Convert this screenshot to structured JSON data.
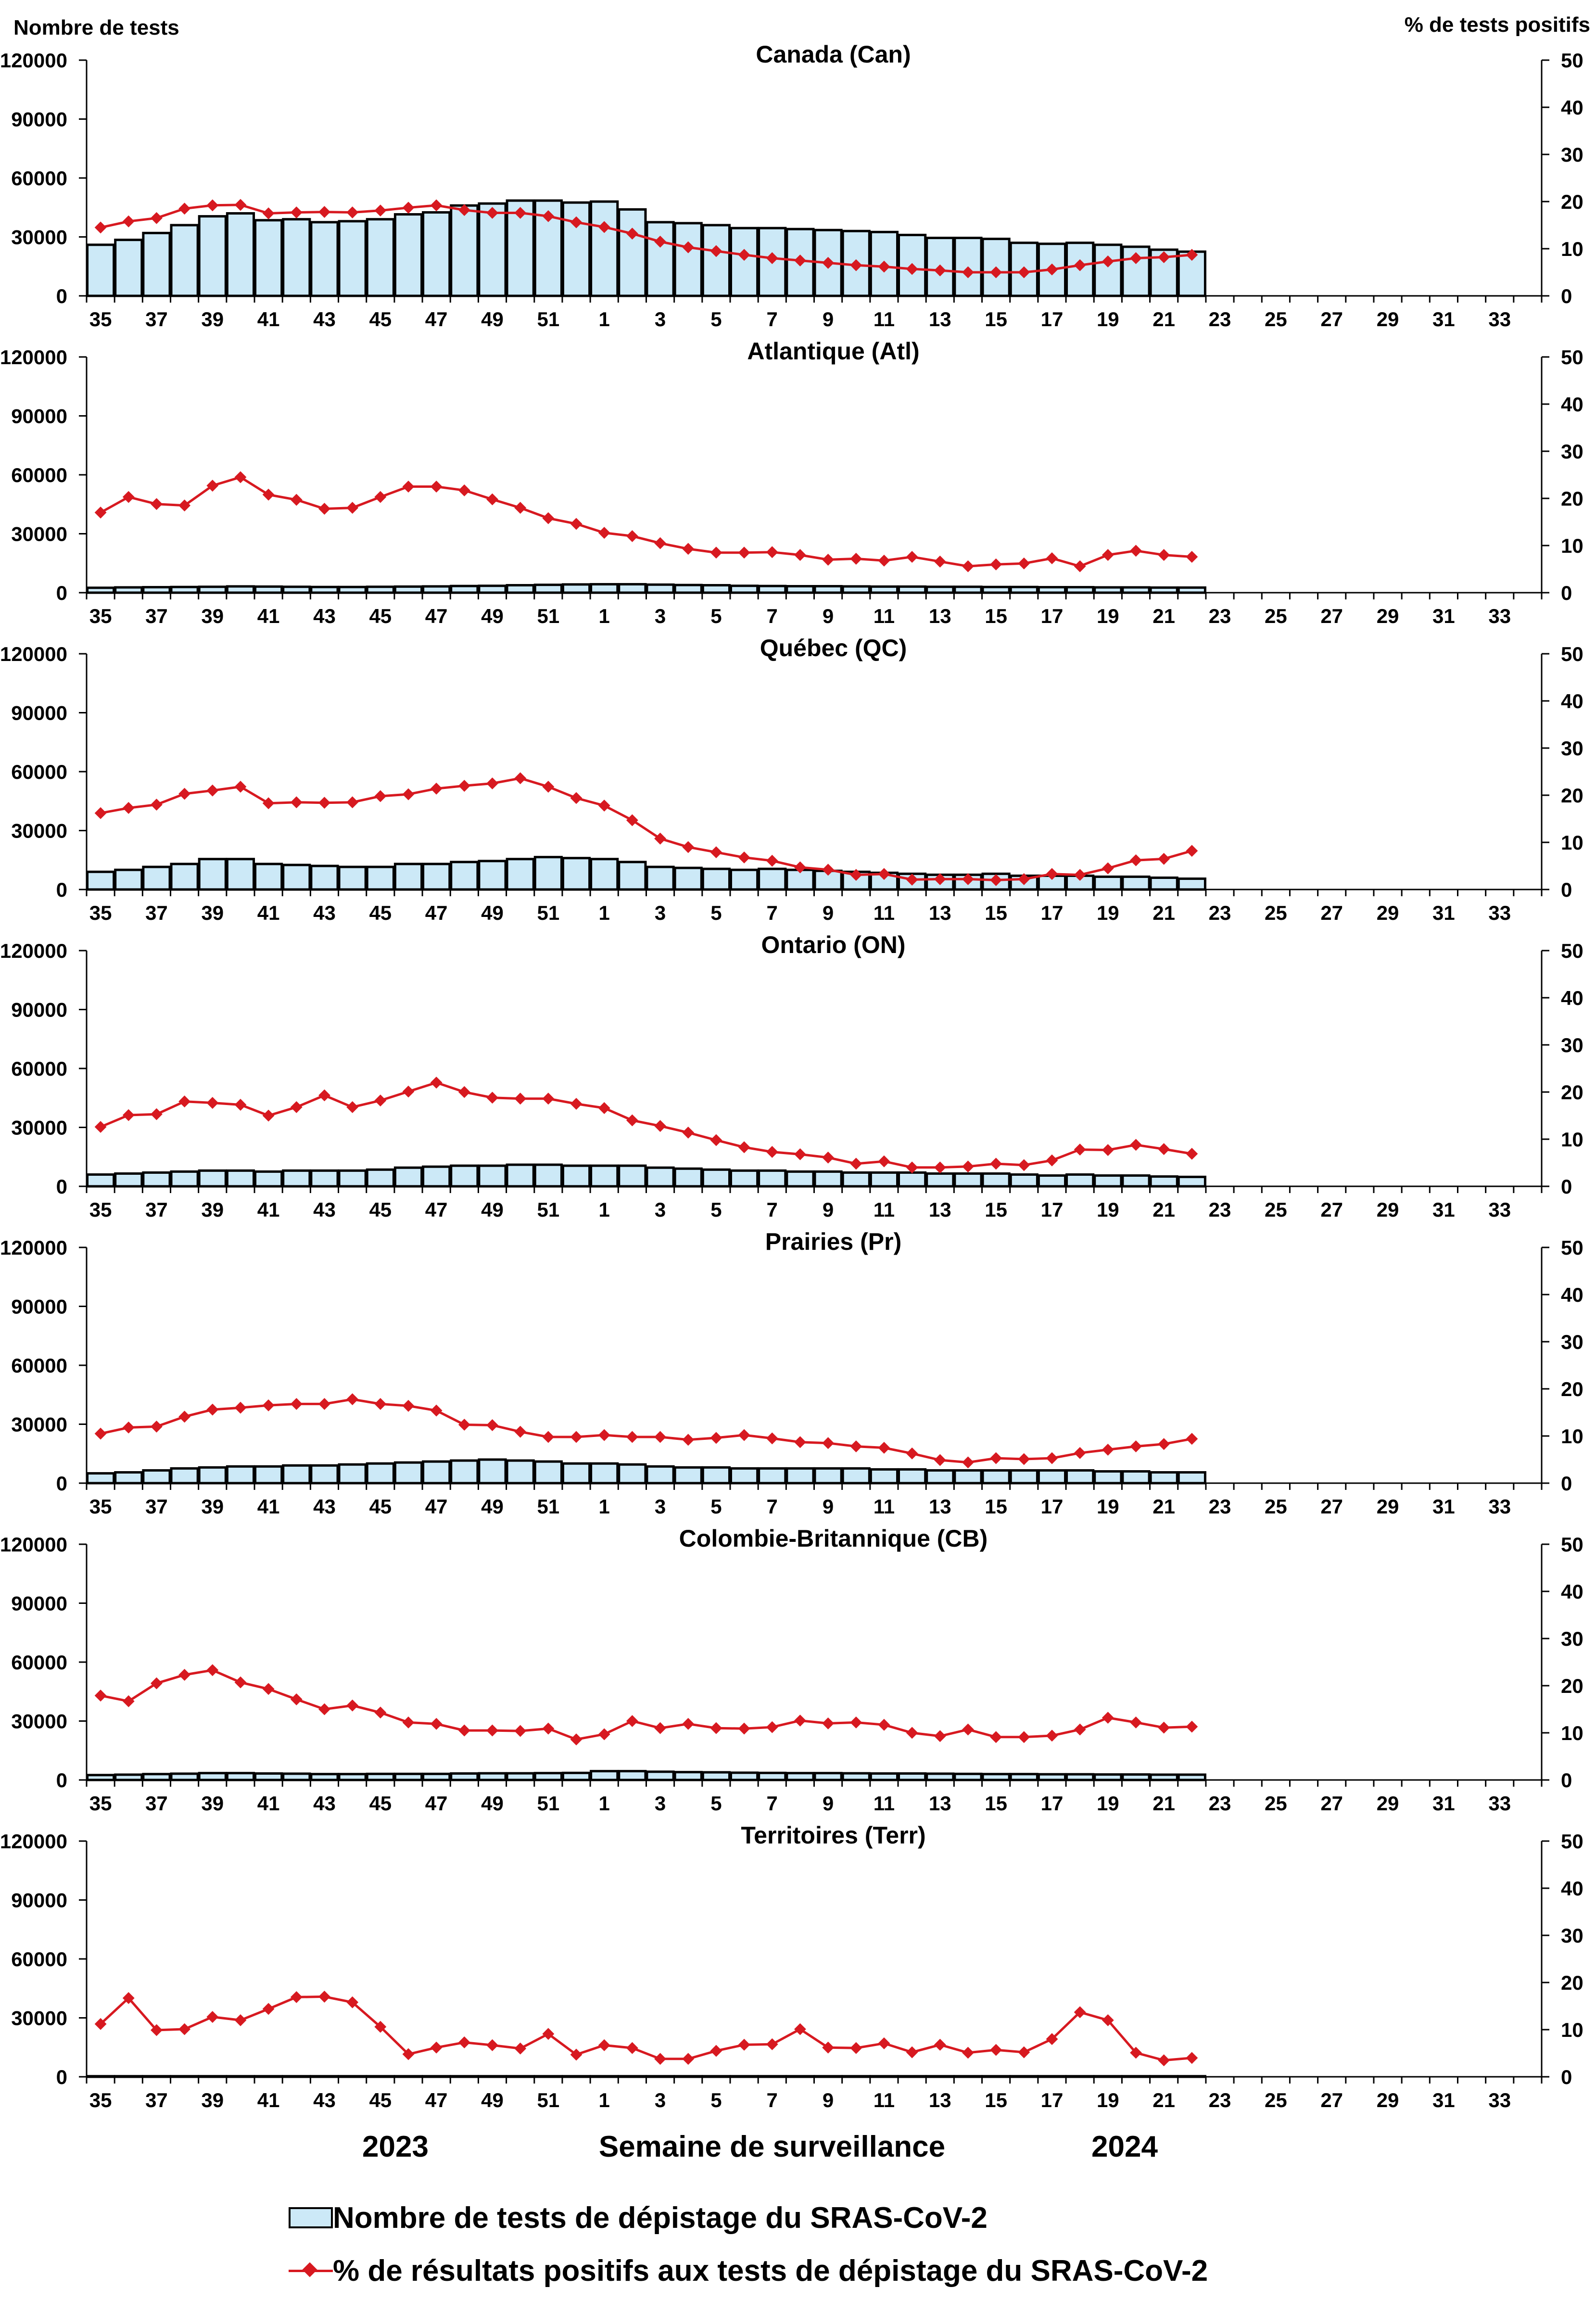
{
  "left_axis_title": "Nombre de tests",
  "right_axis_title": "% de tests positifs",
  "x_axis_title": "Semaine de surveillance",
  "year_labels": [
    "2023",
    "2024"
  ],
  "legend": {
    "bars": "Nombre de tests de dépistage du SRAS-CoV-2",
    "line": "% de résultats positifs aux tests de dépistage du SRAS-CoV-2"
  },
  "colors": {
    "bar_fill": "#cce9f7",
    "bar_stroke": "#000000",
    "line": "#d71920"
  },
  "chart_data": [
    {
      "type": "bar+line",
      "title": "Canada (Can)",
      "weeks": [
        35,
        36,
        37,
        38,
        39,
        40,
        41,
        42,
        43,
        44,
        45,
        46,
        47,
        48,
        49,
        50,
        51,
        52,
        1,
        2,
        3,
        4,
        5,
        6,
        7,
        8,
        9,
        10,
        11,
        12,
        13,
        14,
        15,
        16,
        17,
        18,
        19,
        20,
        21,
        22
      ],
      "x_tick_labels": [
        "35",
        "37",
        "39",
        "41",
        "43",
        "45",
        "47",
        "49",
        "51",
        "1",
        "3",
        "5",
        "7",
        "9",
        "11",
        "13",
        "15",
        "17",
        "19",
        "21",
        "23",
        "25",
        "27",
        "29",
        "31",
        "33"
      ],
      "y_left_ticks": [
        "0",
        "30000",
        "60000",
        "90000",
        "120000"
      ],
      "y_right_ticks": [
        "0",
        "10",
        "20",
        "30",
        "40",
        "50"
      ],
      "ylim_left": [
        0,
        120000
      ],
      "ylim_right": [
        0,
        50
      ],
      "tests": [
        26000,
        28500,
        32000,
        36000,
        40500,
        42000,
        38500,
        39000,
        37500,
        38000,
        39000,
        41500,
        42500,
        46000,
        47000,
        48500,
        48500,
        47500,
        48000,
        44000,
        37500,
        37000,
        36000,
        34500,
        34500,
        34000,
        33500,
        33000,
        32500,
        31000,
        29500,
        29500,
        29000,
        27000,
        26500,
        27000,
        26000,
        25000,
        23500,
        22500
      ],
      "pct_positive": [
        14.5,
        15.8,
        16.5,
        18.5,
        19.2,
        19.3,
        17.5,
        17.7,
        17.8,
        17.7,
        18.1,
        18.7,
        19.2,
        18.2,
        17.6,
        17.6,
        16.9,
        15.6,
        14.6,
        13.2,
        11.5,
        10.3,
        9.5,
        8.7,
        8.0,
        7.5,
        7.0,
        6.5,
        6.2,
        5.7,
        5.4,
        5.0,
        5.0,
        5.0,
        5.6,
        6.5,
        7.3,
        8.0,
        8.2,
        8.7
      ]
    },
    {
      "type": "bar+line",
      "title": "Atlantique (Atl)",
      "weeks": [
        35,
        36,
        37,
        38,
        39,
        40,
        41,
        42,
        43,
        44,
        45,
        46,
        47,
        48,
        49,
        50,
        51,
        52,
        1,
        2,
        3,
        4,
        5,
        6,
        7,
        8,
        9,
        10,
        11,
        12,
        13,
        14,
        15,
        16,
        17,
        18,
        19,
        20,
        21,
        22
      ],
      "x_tick_labels": [
        "35",
        "37",
        "39",
        "41",
        "43",
        "45",
        "47",
        "49",
        "51",
        "1",
        "3",
        "5",
        "7",
        "9",
        "11",
        "13",
        "15",
        "17",
        "19",
        "21",
        "23",
        "25",
        "27",
        "29",
        "31",
        "33"
      ],
      "y_left_ticks": [
        "0",
        "30000",
        "60000",
        "90000",
        "120000"
      ],
      "y_right_ticks": [
        "0",
        "10",
        "20",
        "30",
        "40",
        "50"
      ],
      "ylim_left": [
        0,
        120000
      ],
      "ylim_right": [
        0,
        50
      ],
      "tests": [
        2500,
        2700,
        2800,
        2900,
        3000,
        3200,
        3100,
        3000,
        2900,
        2900,
        3000,
        3100,
        3200,
        3400,
        3500,
        3800,
        4000,
        4200,
        4300,
        4300,
        4100,
        3900,
        3800,
        3500,
        3400,
        3300,
        3300,
        3200,
        3100,
        3100,
        3000,
        3000,
        2900,
        2900,
        2800,
        2800,
        2700,
        2700,
        2600,
        2600
      ],
      "pct_positive": [
        17.0,
        20.3,
        18.8,
        18.5,
        22.7,
        24.5,
        20.8,
        19.7,
        17.8,
        18.0,
        20.3,
        22.5,
        22.5,
        21.7,
        19.8,
        18.0,
        15.8,
        14.6,
        12.7,
        12.0,
        10.5,
        9.3,
        8.5,
        8.5,
        8.6,
        8.0,
        7.0,
        7.2,
        6.8,
        7.6,
        6.6,
        5.6,
        6.0,
        6.2,
        7.3,
        5.6,
        8.0,
        8.9,
        8.0,
        7.6
      ]
    },
    {
      "type": "bar+line",
      "title": "Québec (QC)",
      "weeks": [
        35,
        36,
        37,
        38,
        39,
        40,
        41,
        42,
        43,
        44,
        45,
        46,
        47,
        48,
        49,
        50,
        51,
        52,
        1,
        2,
        3,
        4,
        5,
        6,
        7,
        8,
        9,
        10,
        11,
        12,
        13,
        14,
        15,
        16,
        17,
        18,
        19,
        20,
        21,
        22
      ],
      "x_tick_labels": [
        "35",
        "37",
        "39",
        "41",
        "43",
        "45",
        "47",
        "49",
        "51",
        "1",
        "3",
        "5",
        "7",
        "9",
        "11",
        "13",
        "15",
        "17",
        "19",
        "21",
        "23",
        "25",
        "27",
        "29",
        "31",
        "33"
      ],
      "y_left_ticks": [
        "0",
        "30000",
        "60000",
        "90000",
        "120000"
      ],
      "y_right_ticks": [
        "0",
        "10",
        "20",
        "30",
        "40",
        "50"
      ],
      "ylim_left": [
        0,
        120000
      ],
      "ylim_right": [
        0,
        50
      ],
      "tests": [
        9000,
        10000,
        11500,
        13000,
        15500,
        15500,
        13000,
        12500,
        12000,
        11500,
        11500,
        13000,
        13000,
        14000,
        14500,
        15500,
        16500,
        16000,
        15500,
        14000,
        11500,
        11000,
        10500,
        10000,
        10500,
        10000,
        9500,
        9000,
        8500,
        8000,
        7500,
        7500,
        8000,
        7000,
        7000,
        7000,
        6500,
        6500,
        6000,
        5500
      ],
      "pct_positive": [
        16.2,
        17.3,
        18.0,
        20.3,
        21.0,
        21.8,
        18.3,
        18.5,
        18.4,
        18.5,
        19.8,
        20.2,
        21.4,
        22.0,
        22.5,
        23.6,
        21.8,
        19.4,
        17.8,
        14.7,
        10.8,
        9.0,
        7.9,
        6.8,
        6.1,
        4.7,
        4.2,
        3.1,
        3.3,
        2.1,
        2.2,
        2.2,
        2.0,
        2.2,
        3.3,
        3.1,
        4.5,
        6.2,
        6.5,
        8.2
      ]
    },
    {
      "type": "bar+line",
      "title": "Ontario (ON)",
      "weeks": [
        35,
        36,
        37,
        38,
        39,
        40,
        41,
        42,
        43,
        44,
        45,
        46,
        47,
        48,
        49,
        50,
        51,
        52,
        1,
        2,
        3,
        4,
        5,
        6,
        7,
        8,
        9,
        10,
        11,
        12,
        13,
        14,
        15,
        16,
        17,
        18,
        19,
        20,
        21,
        22
      ],
      "x_tick_labels": [
        "35",
        "37",
        "39",
        "41",
        "43",
        "45",
        "47",
        "49",
        "51",
        "1",
        "3",
        "5",
        "7",
        "9",
        "11",
        "13",
        "15",
        "17",
        "19",
        "21",
        "23",
        "25",
        "27",
        "29",
        "31",
        "33"
      ],
      "y_left_ticks": [
        "0",
        "30000",
        "60000",
        "90000",
        "120000"
      ],
      "y_right_ticks": [
        "0",
        "10",
        "20",
        "30",
        "40",
        "50"
      ],
      "ylim_left": [
        0,
        120000
      ],
      "ylim_right": [
        0,
        50
      ],
      "tests": [
        6000,
        6500,
        7000,
        7500,
        8000,
        8000,
        7500,
        8000,
        8000,
        8000,
        8500,
        9500,
        10000,
        10500,
        10500,
        11000,
        11000,
        10500,
        10500,
        10500,
        9500,
        9000,
        8500,
        8000,
        8000,
        7500,
        7500,
        7000,
        7000,
        7000,
        6500,
        6500,
        6500,
        6000,
        5500,
        6000,
        5500,
        5500,
        5000,
        4800
      ],
      "pct_positive": [
        12.6,
        15.1,
        15.3,
        18.0,
        17.7,
        17.3,
        15.0,
        16.8,
        19.3,
        16.8,
        18.2,
        20.1,
        22.0,
        20.0,
        18.8,
        18.6,
        18.6,
        17.5,
        16.6,
        14.0,
        12.8,
        11.4,
        9.8,
        8.3,
        7.3,
        6.8,
        6.1,
        4.8,
        5.3,
        4.0,
        4.0,
        4.2,
        4.8,
        4.5,
        5.5,
        7.8,
        7.7,
        8.8,
        7.9,
        6.9
      ]
    },
    {
      "type": "bar+line",
      "title": "Prairies (Pr)",
      "weeks": [
        35,
        36,
        37,
        38,
        39,
        40,
        41,
        42,
        43,
        44,
        45,
        46,
        47,
        48,
        49,
        50,
        51,
        52,
        1,
        2,
        3,
        4,
        5,
        6,
        7,
        8,
        9,
        10,
        11,
        12,
        13,
        14,
        15,
        16,
        17,
        18,
        19,
        20,
        21,
        22
      ],
      "x_tick_labels": [
        "35",
        "37",
        "39",
        "41",
        "43",
        "45",
        "47",
        "49",
        "51",
        "1",
        "3",
        "5",
        "7",
        "9",
        "11",
        "13",
        "15",
        "17",
        "19",
        "21",
        "23",
        "25",
        "27",
        "29",
        "31",
        "33"
      ],
      "y_left_ticks": [
        "0",
        "30000",
        "60000",
        "90000",
        "120000"
      ],
      "y_right_ticks": [
        "0",
        "10",
        "20",
        "30",
        "40",
        "50"
      ],
      "ylim_left": [
        0,
        120000
      ],
      "ylim_right": [
        0,
        50
      ],
      "tests": [
        5000,
        5500,
        6500,
        7500,
        8000,
        8500,
        8500,
        9000,
        9000,
        9500,
        10000,
        10500,
        11000,
        11500,
        12000,
        11500,
        11000,
        10000,
        10000,
        9500,
        8500,
        8000,
        8000,
        7500,
        7500,
        7500,
        7500,
        7500,
        7000,
        7000,
        6500,
        6500,
        6500,
        6500,
        6500,
        6500,
        6000,
        6000,
        5500,
        5500
      ],
      "pct_positive": [
        10.5,
        11.8,
        12.0,
        14.1,
        15.6,
        16.0,
        16.5,
        16.8,
        16.8,
        17.8,
        16.8,
        16.4,
        15.4,
        12.4,
        12.3,
        10.9,
        9.8,
        9.8,
        10.2,
        9.8,
        9.8,
        9.2,
        9.6,
        10.2,
        9.5,
        8.7,
        8.5,
        7.8,
        7.5,
        6.3,
        4.9,
        4.4,
        5.3,
        5.1,
        5.3,
        6.4,
        7.1,
        7.8,
        8.3,
        9.4
      ]
    },
    {
      "type": "bar+line",
      "title": "Colombie-Britannique (CB)",
      "weeks": [
        35,
        36,
        37,
        38,
        39,
        40,
        41,
        42,
        43,
        44,
        45,
        46,
        47,
        48,
        49,
        50,
        51,
        52,
        1,
        2,
        3,
        4,
        5,
        6,
        7,
        8,
        9,
        10,
        11,
        12,
        13,
        14,
        15,
        16,
        17,
        18,
        19,
        20,
        21,
        22
      ],
      "x_tick_labels": [
        "35",
        "37",
        "39",
        "41",
        "43",
        "45",
        "47",
        "49",
        "51",
        "1",
        "3",
        "5",
        "7",
        "9",
        "11",
        "13",
        "15",
        "17",
        "19",
        "21",
        "23",
        "25",
        "27",
        "29",
        "31",
        "33"
      ],
      "y_left_ticks": [
        "0",
        "30000",
        "60000",
        "90000",
        "120000"
      ],
      "y_right_ticks": [
        "0",
        "10",
        "20",
        "30",
        "40",
        "50"
      ],
      "ylim_left": [
        0,
        120000
      ],
      "ylim_right": [
        0,
        50
      ],
      "tests": [
        2500,
        2700,
        3000,
        3200,
        3500,
        3500,
        3300,
        3200,
        3000,
        3000,
        3100,
        3100,
        3100,
        3300,
        3400,
        3400,
        3500,
        3600,
        4500,
        4500,
        4200,
        4000,
        3900,
        3700,
        3600,
        3500,
        3500,
        3400,
        3300,
        3300,
        3200,
        3100,
        3000,
        3000,
        2900,
        2900,
        2800,
        2800,
        2700,
        2700
      ],
      "pct_positive": [
        17.9,
        16.7,
        20.5,
        22.3,
        23.3,
        20.7,
        19.3,
        17.1,
        15.0,
        15.8,
        14.3,
        12.2,
        11.9,
        10.5,
        10.5,
        10.4,
        10.9,
        8.6,
        9.7,
        12.5,
        11.0,
        11.9,
        11.0,
        10.9,
        11.2,
        12.6,
        12.0,
        12.2,
        11.7,
        10.0,
        9.3,
        10.7,
        9.1,
        9.1,
        9.4,
        10.7,
        13.2,
        12.2,
        11.1,
        11.3
      ]
    },
    {
      "type": "bar+line",
      "title": "Territoires (Terr)",
      "weeks": [
        35,
        36,
        37,
        38,
        39,
        40,
        41,
        42,
        43,
        44,
        45,
        46,
        47,
        48,
        49,
        50,
        51,
        52,
        1,
        2,
        3,
        4,
        5,
        6,
        7,
        8,
        9,
        10,
        11,
        12,
        13,
        14,
        15,
        16,
        17,
        18,
        19,
        20,
        21,
        22
      ],
      "x_tick_labels": [
        "35",
        "37",
        "39",
        "41",
        "43",
        "45",
        "47",
        "49",
        "51",
        "1",
        "3",
        "5",
        "7",
        "9",
        "11",
        "13",
        "15",
        "17",
        "19",
        "21",
        "23",
        "25",
        "27",
        "29",
        "31",
        "33"
      ],
      "y_left_ticks": [
        "0",
        "30000",
        "60000",
        "90000",
        "120000"
      ],
      "y_right_ticks": [
        "0",
        "10",
        "20",
        "30",
        "40",
        "50"
      ],
      "ylim_left": [
        0,
        120000
      ],
      "ylim_right": [
        0,
        50
      ],
      "tests": [
        300,
        300,
        300,
        300,
        300,
        300,
        300,
        300,
        300,
        300,
        300,
        300,
        300,
        300,
        300,
        300,
        300,
        300,
        300,
        300,
        300,
        300,
        300,
        300,
        300,
        300,
        300,
        300,
        300,
        300,
        300,
        300,
        300,
        300,
        300,
        300,
        300,
        300,
        300,
        300
      ],
      "pct_positive": [
        11.2,
        16.7,
        9.9,
        10.1,
        12.7,
        12.0,
        14.4,
        16.9,
        17.0,
        15.8,
        10.6,
        4.8,
        6.2,
        7.3,
        6.7,
        6.0,
        9.1,
        4.7,
        6.7,
        6.1,
        3.8,
        3.8,
        5.5,
        6.8,
        6.9,
        10.1,
        6.2,
        6.1,
        7.1,
        5.2,
        6.8,
        5.1,
        5.7,
        5.2,
        8.0,
        13.7,
        12.0,
        5.1,
        3.5,
        4.0
      ]
    }
  ]
}
